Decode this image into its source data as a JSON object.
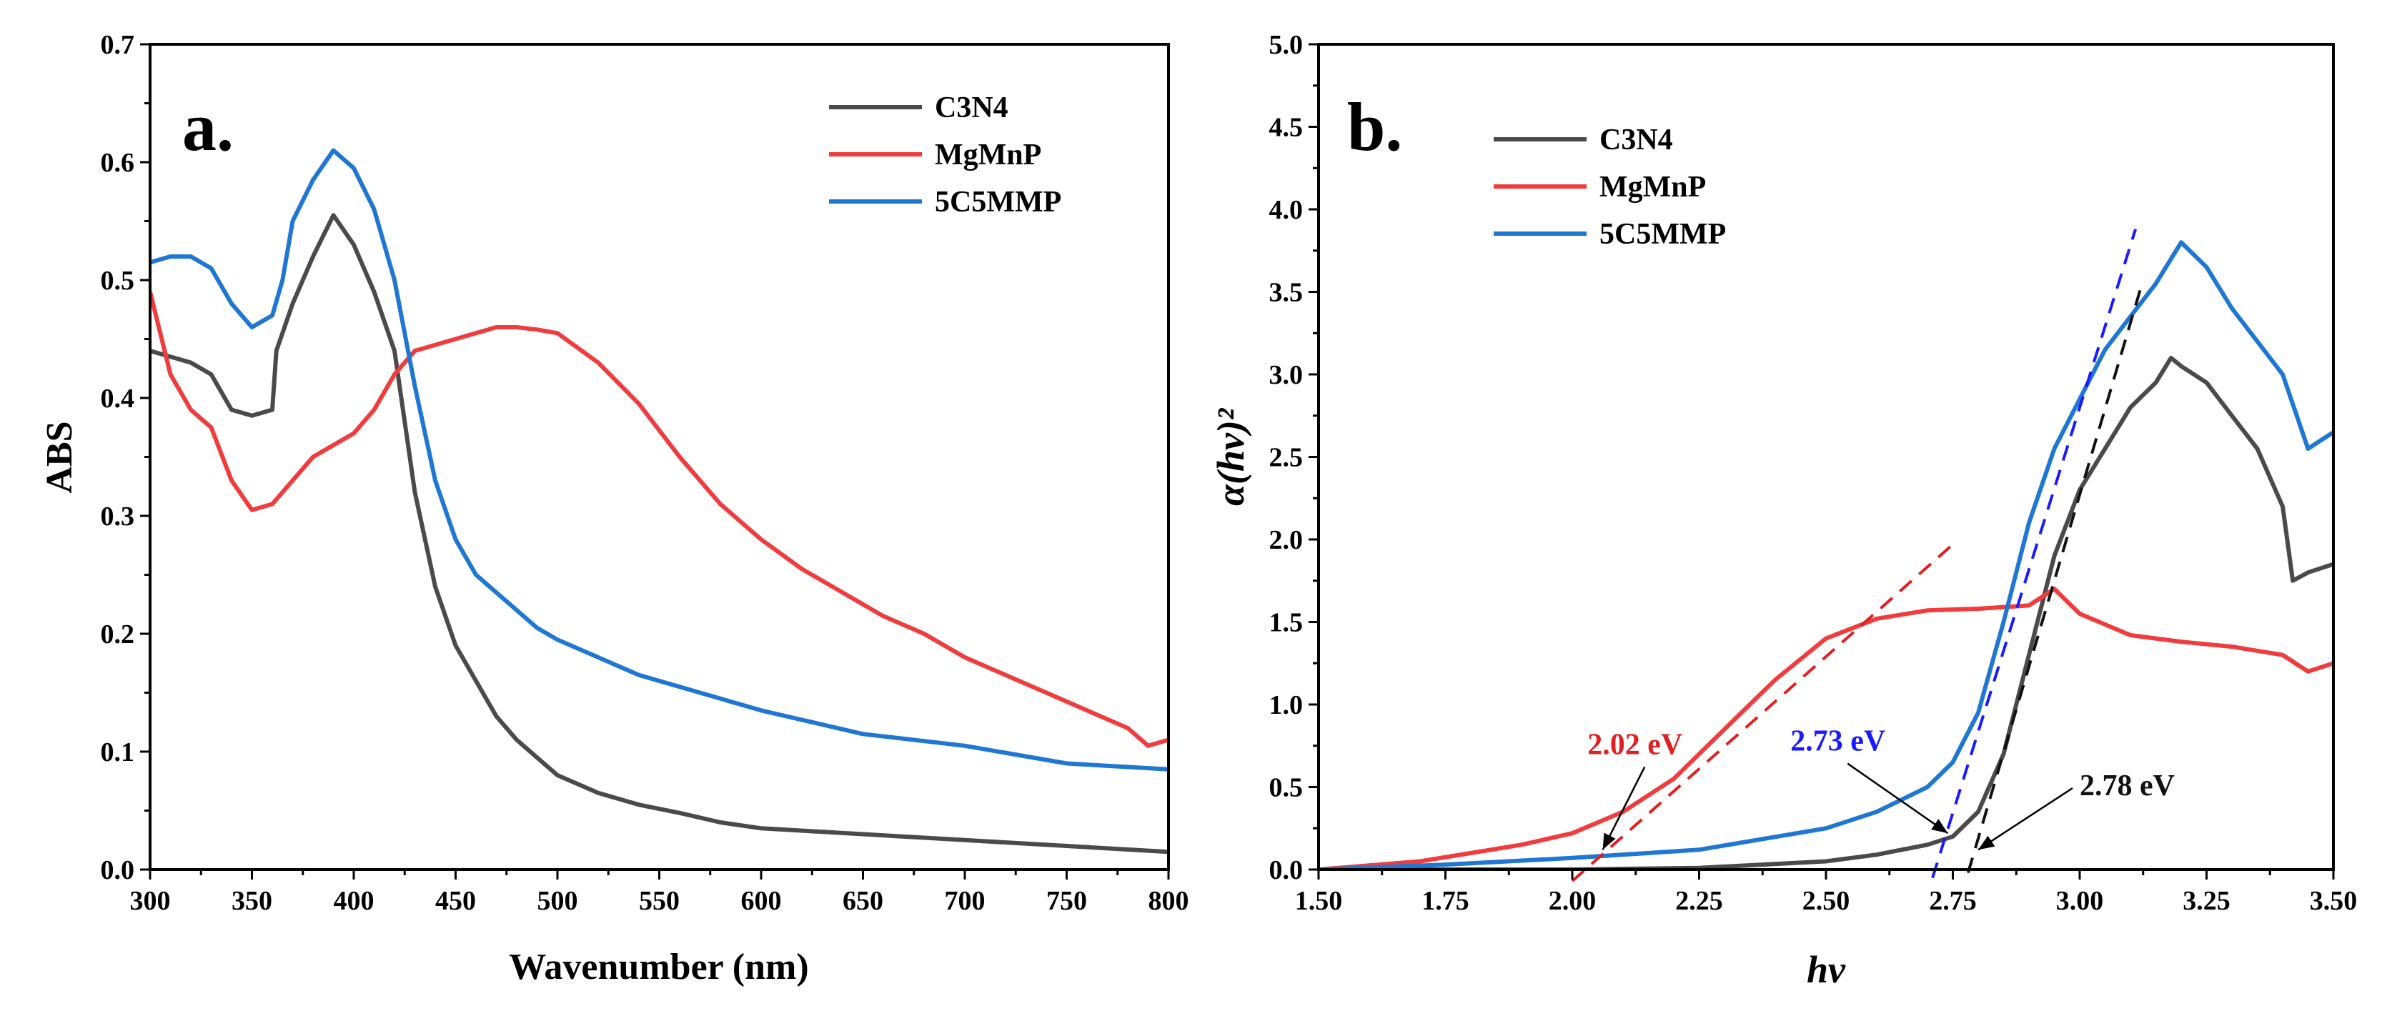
{
  "chart_data": [
    {
      "panel_label": "a.",
      "type": "line",
      "xlabel": "Wavenumber (nm)",
      "ylabel": "ABS",
      "xlim": [
        300,
        800
      ],
      "ylim": [
        0.0,
        0.7
      ],
      "xticks": [
        "300",
        "350",
        "400",
        "450",
        "500",
        "550",
        "600",
        "650",
        "700",
        "750",
        "800"
      ],
      "yticks": [
        "0.0",
        "0.1",
        "0.2",
        "0.3",
        "0.4",
        "0.5",
        "0.6",
        "0.7"
      ],
      "legend_position": "top-right",
      "series": [
        {
          "name": "C3N4",
          "color": "#4a4a4a",
          "x": [
            300,
            310,
            320,
            330,
            340,
            350,
            360,
            362,
            370,
            380,
            390,
            400,
            410,
            420,
            430,
            440,
            450,
            460,
            470,
            480,
            490,
            500,
            520,
            540,
            560,
            580,
            600,
            650,
            700,
            750,
            800
          ],
          "y": [
            0.44,
            0.435,
            0.43,
            0.42,
            0.39,
            0.385,
            0.39,
            0.44,
            0.48,
            0.52,
            0.555,
            0.53,
            0.49,
            0.44,
            0.32,
            0.24,
            0.19,
            0.16,
            0.13,
            0.11,
            0.095,
            0.08,
            0.065,
            0.055,
            0.048,
            0.04,
            0.035,
            0.03,
            0.025,
            0.02,
            0.015
          ]
        },
        {
          "name": "MgMnP",
          "color": "#f03c3c",
          "x": [
            300,
            310,
            320,
            330,
            340,
            350,
            360,
            370,
            380,
            390,
            400,
            410,
            420,
            430,
            440,
            450,
            460,
            470,
            480,
            490,
            500,
            520,
            540,
            560,
            580,
            600,
            620,
            640,
            660,
            680,
            700,
            720,
            740,
            760,
            780,
            790,
            800
          ],
          "y": [
            0.49,
            0.42,
            0.39,
            0.375,
            0.33,
            0.305,
            0.31,
            0.33,
            0.35,
            0.36,
            0.37,
            0.39,
            0.42,
            0.44,
            0.445,
            0.45,
            0.455,
            0.46,
            0.46,
            0.458,
            0.455,
            0.43,
            0.395,
            0.35,
            0.31,
            0.28,
            0.255,
            0.235,
            0.215,
            0.2,
            0.18,
            0.165,
            0.15,
            0.135,
            0.12,
            0.105,
            0.11
          ]
        },
        {
          "name": "5C5MMP",
          "color": "#1f77d4",
          "x": [
            300,
            310,
            320,
            330,
            340,
            350,
            360,
            365,
            370,
            380,
            390,
            400,
            410,
            420,
            430,
            440,
            450,
            460,
            470,
            480,
            490,
            500,
            520,
            540,
            560,
            580,
            600,
            650,
            700,
            750,
            800
          ],
          "y": [
            0.515,
            0.52,
            0.52,
            0.51,
            0.48,
            0.46,
            0.47,
            0.5,
            0.55,
            0.585,
            0.61,
            0.595,
            0.56,
            0.5,
            0.41,
            0.33,
            0.28,
            0.25,
            0.235,
            0.22,
            0.205,
            0.195,
            0.18,
            0.165,
            0.155,
            0.145,
            0.135,
            0.115,
            0.105,
            0.09,
            0.085
          ]
        }
      ]
    },
    {
      "panel_label": "b.",
      "type": "line",
      "xlabel": "hv",
      "ylabel": "α(hv)²",
      "xlim": [
        1.5,
        3.5
      ],
      "ylim": [
        0.0,
        5.0
      ],
      "xticks": [
        "1.50",
        "1.75",
        "2.00",
        "2.25",
        "2.50",
        "2.75",
        "3.00",
        "3.25",
        "3.50"
      ],
      "yticks": [
        "0.0",
        "0.5",
        "1.0",
        "1.5",
        "2.0",
        "2.5",
        "3.0",
        "3.5",
        "4.0",
        "4.5",
        "5.0"
      ],
      "legend_position": "top-left",
      "series": [
        {
          "name": "C3N4",
          "color": "#4a4a4a",
          "x": [
            1.5,
            1.75,
            2.0,
            2.25,
            2.5,
            2.6,
            2.7,
            2.75,
            2.8,
            2.85,
            2.9,
            2.95,
            3.0,
            3.05,
            3.1,
            3.15,
            3.18,
            3.2,
            3.25,
            3.3,
            3.35,
            3.4,
            3.42,
            3.45,
            3.5
          ],
          "y": [
            0.0,
            0.0,
            0.0,
            0.01,
            0.05,
            0.09,
            0.15,
            0.2,
            0.35,
            0.7,
            1.3,
            1.9,
            2.3,
            2.55,
            2.8,
            2.95,
            3.1,
            3.05,
            2.95,
            2.75,
            2.55,
            2.2,
            1.75,
            1.8,
            1.85
          ]
        },
        {
          "name": "MgMnP",
          "color": "#f03c3c",
          "x": [
            1.5,
            1.7,
            1.9,
            2.0,
            2.1,
            2.2,
            2.3,
            2.4,
            2.5,
            2.6,
            2.7,
            2.8,
            2.9,
            2.95,
            3.0,
            3.1,
            3.2,
            3.3,
            3.4,
            3.45,
            3.5
          ],
          "y": [
            0.0,
            0.05,
            0.15,
            0.22,
            0.35,
            0.55,
            0.85,
            1.15,
            1.4,
            1.52,
            1.57,
            1.58,
            1.6,
            1.7,
            1.55,
            1.42,
            1.38,
            1.35,
            1.3,
            1.2,
            1.25
          ]
        },
        {
          "name": "5C5MMP",
          "color": "#1f77d4",
          "x": [
            1.5,
            1.75,
            2.0,
            2.25,
            2.5,
            2.6,
            2.7,
            2.75,
            2.8,
            2.85,
            2.9,
            2.95,
            3.0,
            3.05,
            3.1,
            3.15,
            3.2,
            3.25,
            3.3,
            3.35,
            3.4,
            3.45,
            3.5
          ],
          "y": [
            0.0,
            0.03,
            0.07,
            0.12,
            0.25,
            0.35,
            0.5,
            0.65,
            0.95,
            1.5,
            2.1,
            2.55,
            2.85,
            3.15,
            3.35,
            3.55,
            3.8,
            3.65,
            3.4,
            3.2,
            3.0,
            2.55,
            2.65
          ]
        }
      ],
      "fit_lines": [
        {
          "name": "MgMnP tangent",
          "color": "#e02020",
          "x": [
            2.0,
            2.75
          ],
          "y": [
            -0.07,
            1.97
          ]
        },
        {
          "name": "5C5MMP tangent",
          "color": "#1a1aff",
          "x": [
            2.71,
            3.11
          ],
          "y": [
            -0.05,
            3.88
          ]
        },
        {
          "name": "C3N4 tangent",
          "color": "#111111",
          "x": [
            2.78,
            3.12
          ],
          "y": [
            -0.02,
            3.52
          ]
        }
      ],
      "annotations": [
        {
          "text": "2.02 eV",
          "color": "#e02020",
          "x": 2.03,
          "y": 0.7,
          "arrow_to": [
            2.06,
            0.12
          ]
        },
        {
          "text": "2.73 eV",
          "color": "#1a1aff",
          "x": 2.43,
          "y": 0.72,
          "arrow_to": [
            2.74,
            0.22
          ]
        },
        {
          "text": "2.78 eV",
          "color": "#111111",
          "x": 3.0,
          "y": 0.45,
          "arrow_to": [
            2.8,
            0.12
          ]
        }
      ]
    }
  ]
}
